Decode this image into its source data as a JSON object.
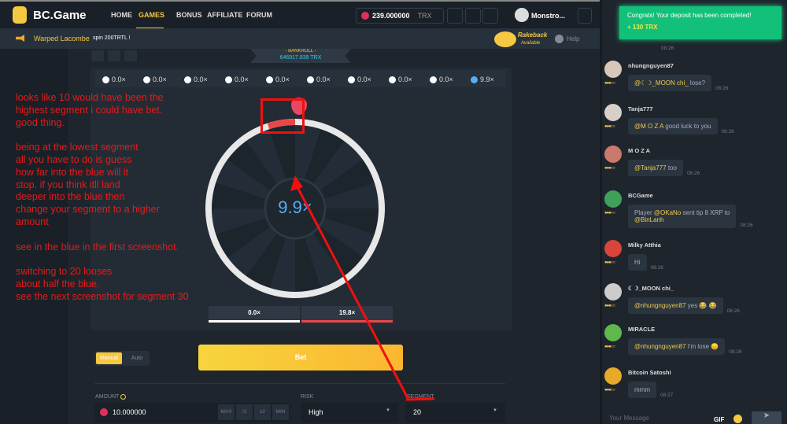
{
  "header": {
    "logo": "BC.Game",
    "nav": [
      "HOME",
      "GAMES",
      "BONUS",
      "AFFILIATE",
      "FORUM"
    ],
    "active": "GAMES",
    "balance": "239.000000",
    "currency": "TRX",
    "username": "Monstro..."
  },
  "announcement": {
    "user": "Warped Lacombe",
    "text": "spin 200TRTL !"
  },
  "rakeback": {
    "title": "Rakeback",
    "sub": "Available",
    "help": "Help"
  },
  "bankroll": {
    "label": "- BANKROLL -",
    "value": "646917.839 TRX"
  },
  "multipliers": [
    "0.0×",
    "0.0×",
    "0.0×",
    "0.0×",
    "0.0×",
    "0.0×",
    "0.0×",
    "0.0×",
    "0.0×",
    "9.9×"
  ],
  "wheel": {
    "result": "9.9×",
    "segments": 20
  },
  "payouts": [
    {
      "label": "0.0×",
      "color": "#ffffff"
    },
    {
      "label": "19.8×",
      "color": "#e84848"
    }
  ],
  "controls": {
    "manual": "Manual",
    "auto": "Auto",
    "bet": "Bet",
    "amount_label": "AMOUNT",
    "amount": "10.000000",
    "max": "MAX",
    "half": "/2",
    "double": "x2",
    "min": "MIN",
    "risk_label": "RISK",
    "risk": "High",
    "segment_label": "SEGMENT",
    "segment": "20"
  },
  "toast": {
    "title": "Congrats! Your deposit has been completed!",
    "amount": "+ 130 TRX"
  },
  "chat": {
    "messages": [
      {
        "user": "nhungnguyen87",
        "mention": "@☾☽_MOON chi_",
        "text": " lose?",
        "time": "08:26"
      },
      {
        "user": "Tanja777",
        "mention": "@M O Z A",
        "text": " good luck to you",
        "time": "08:26"
      },
      {
        "user": "M O Z A",
        "mention": "@Tanja777",
        "text": " too",
        "time": "08:26"
      },
      {
        "user": "BCGame",
        "pre": "Player ",
        "mention": "@OKaNo",
        "text": " sent tip 8 XRP to",
        "mention2": "@BinLanh",
        "time": "08:26"
      },
      {
        "user": "Milky Atthia",
        "mention": "",
        "text": "Hi",
        "time": "08:26"
      },
      {
        "user": "☾☽_MOON chi_",
        "mention": "@nhungnguyen87",
        "text": " yes 😂 😂",
        "time": "08:26"
      },
      {
        "user": "MIRACLE",
        "mention": "@nhungnguyen87",
        "text": " I'm lose 😞",
        "time": "08:26"
      },
      {
        "user": "Bitcoin Satoshi",
        "mention": "",
        "text": "mmm",
        "time": "08:27"
      }
    ],
    "placeholder": "Your Message",
    "gif": "GIF",
    "prev_time": "08:26"
  },
  "annotation": [
    "looks like 10 would have been the",
    "highest segment i could have bet.",
    "good thing.",
    "",
    "being at the lowest segment",
    "all you have to do is guess",
    "how far into the blue will it",
    "stop. if you think itll land",
    "deeper into the blue then",
    "change your segment to a higher",
    "amount",
    "",
    "see in the blue in the first screenshot.",
    "",
    "switching to 20 looses",
    "about half the blue.",
    "see the next screenshot for segment 30"
  ],
  "colors": {
    "accent": "#f5c842",
    "toast": "#12c07a",
    "annotation": "#e41b1b",
    "selected": "#58aef5"
  }
}
